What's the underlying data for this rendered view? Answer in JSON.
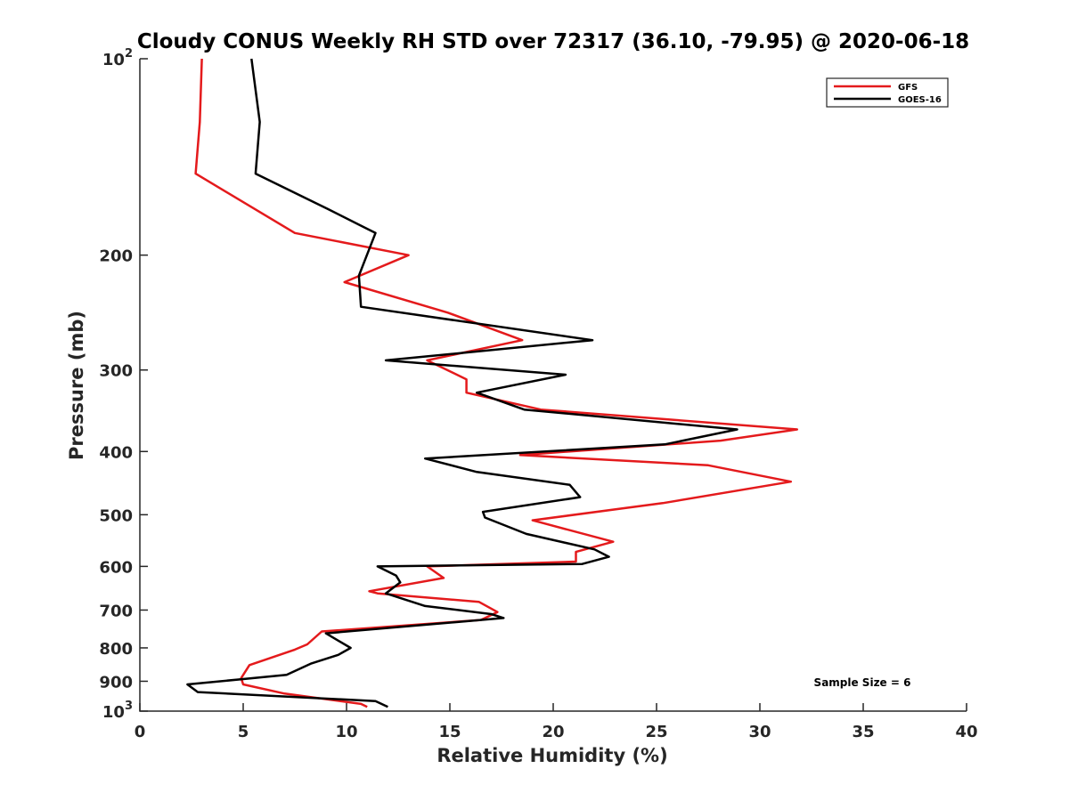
{
  "chart_data": {
    "type": "line",
    "title": "Cloudy CONUS Weekly RH STD over 72317 (36.10, -79.95) @ 2020-06-18",
    "xlabel": "Relative Humidity (%)",
    "ylabel": "Pressure (mb)",
    "xlim": [
      0,
      40
    ],
    "ylim": [
      100,
      1000
    ],
    "yscale": "log",
    "y_reversed": true,
    "grid": false,
    "legend_position": "top-right",
    "x_ticks": [
      0,
      5,
      10,
      15,
      20,
      25,
      30,
      35,
      40
    ],
    "y_ticks": [
      {
        "value": 100,
        "base": "10",
        "exp": "2"
      },
      {
        "value": 200,
        "label": "200"
      },
      {
        "value": 300,
        "label": "300"
      },
      {
        "value": 400,
        "label": "400"
      },
      {
        "value": 500,
        "label": "500"
      },
      {
        "value": 600,
        "label": "600"
      },
      {
        "value": 700,
        "label": "700"
      },
      {
        "value": 800,
        "label": "800"
      },
      {
        "value": 900,
        "label": "900"
      },
      {
        "value": 1000,
        "base": "10",
        "exp": "3"
      }
    ],
    "annotation": "Sample Size = 6",
    "series": [
      {
        "name": "GFS",
        "color": "#e41a1c",
        "points": [
          [
            3.0,
            100
          ],
          [
            2.9,
            125
          ],
          [
            2.7,
            150
          ],
          [
            7.5,
            185
          ],
          [
            13.0,
            200
          ],
          [
            9.9,
            220
          ],
          [
            14.9,
            245
          ],
          [
            18.5,
            270
          ],
          [
            13.9,
            290
          ],
          [
            15.8,
            310
          ],
          [
            15.8,
            325
          ],
          [
            19.4,
            345
          ],
          [
            31.8,
            370
          ],
          [
            28.1,
            385
          ],
          [
            18.4,
            405
          ],
          [
            27.5,
            420
          ],
          [
            31.5,
            445
          ],
          [
            25.3,
            480
          ],
          [
            19.0,
            510
          ],
          [
            22.9,
            550
          ],
          [
            21.1,
            570
          ],
          [
            21.1,
            590
          ],
          [
            13.9,
            600
          ],
          [
            14.7,
            625
          ],
          [
            11.1,
            655
          ],
          [
            11.5,
            660
          ],
          [
            16.4,
            680
          ],
          [
            17.3,
            705
          ],
          [
            16.5,
            725
          ],
          [
            8.8,
            755
          ],
          [
            8.1,
            790
          ],
          [
            7.5,
            805
          ],
          [
            5.3,
            850
          ],
          [
            4.9,
            890
          ],
          [
            5.0,
            910
          ],
          [
            7.0,
            940
          ],
          [
            10.7,
            975
          ],
          [
            11.0,
            985
          ]
        ]
      },
      {
        "name": "GOES-16",
        "color": "#000000",
        "points": [
          [
            5.4,
            100
          ],
          [
            5.8,
            125
          ],
          [
            5.6,
            150
          ],
          [
            9.1,
            170
          ],
          [
            11.4,
            185
          ],
          [
            10.6,
            215
          ],
          [
            10.7,
            240
          ],
          [
            21.9,
            270
          ],
          [
            11.9,
            290
          ],
          [
            20.6,
            305
          ],
          [
            16.3,
            325
          ],
          [
            18.6,
            345
          ],
          [
            28.9,
            370
          ],
          [
            25.4,
            390
          ],
          [
            13.8,
            410
          ],
          [
            16.3,
            430
          ],
          [
            20.8,
            450
          ],
          [
            21.3,
            470
          ],
          [
            16.6,
            495
          ],
          [
            16.7,
            505
          ],
          [
            18.7,
            535
          ],
          [
            22.0,
            565
          ],
          [
            22.7,
            580
          ],
          [
            21.4,
            595
          ],
          [
            11.5,
            600
          ],
          [
            12.4,
            620
          ],
          [
            12.6,
            635
          ],
          [
            11.9,
            660
          ],
          [
            13.8,
            690
          ],
          [
            17.0,
            710
          ],
          [
            17.6,
            720
          ],
          [
            9.0,
            760
          ],
          [
            10.2,
            800
          ],
          [
            9.6,
            820
          ],
          [
            8.3,
            845
          ],
          [
            7.1,
            880
          ],
          [
            2.3,
            910
          ],
          [
            2.8,
            935
          ],
          [
            11.4,
            965
          ],
          [
            12.0,
            985
          ]
        ]
      }
    ]
  }
}
